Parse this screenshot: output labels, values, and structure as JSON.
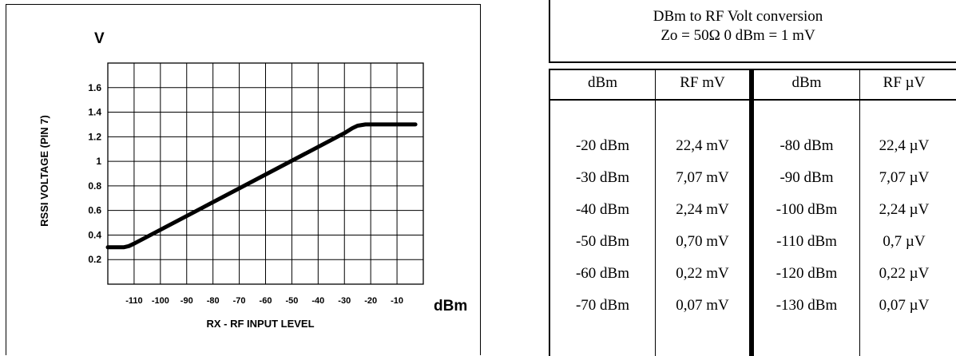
{
  "chart_data": {
    "type": "line",
    "title": "",
    "ylabel": "RSSI VOLTAGE (PIN 7)",
    "y_unit": "V",
    "xlabel": "RX - RF INPUT LEVEL",
    "x_unit": "dBm",
    "xlim": [
      -120,
      0
    ],
    "ylim": [
      0,
      1.8
    ],
    "grid": true,
    "x_tick_labels": [
      "-110",
      "-100",
      "-90",
      "-80",
      "-70",
      "-60",
      "-50",
      "-40",
      "-30",
      "-20",
      "-10"
    ],
    "y_tick_labels": [
      "0.2",
      "0.4",
      "0.6",
      "0.8",
      "1",
      "1.2",
      "1.4",
      "1.6"
    ],
    "series": [
      {
        "x": [
          -120,
          -114,
          -112,
          -110,
          -30,
          -27,
          -25,
          -22,
          -3
        ],
        "y": [
          0.3,
          0.3,
          0.31,
          0.33,
          1.23,
          1.27,
          1.29,
          1.3,
          1.3
        ],
        "color": "#000000"
      }
    ]
  },
  "conversion": {
    "title": "DBm to RF Volt conversion",
    "subtitle": "Zo = 50Ω   0 dBm = 1 mV",
    "headers": [
      "dBm",
      "RF mV",
      "dBm",
      "RF µV"
    ],
    "rows": [
      [
        "-20 dBm",
        "22,4 mV",
        "-80 dBm",
        "22,4 µV"
      ],
      [
        "-30 dBm",
        "7,07 mV",
        "-90 dBm",
        "7,07 µV"
      ],
      [
        "-40 dBm",
        "2,24 mV",
        "-100 dBm",
        "2,24 µV"
      ],
      [
        "-50 dBm",
        "0,70 mV",
        "-110 dBm",
        "0,7 µV"
      ],
      [
        "-60 dBm",
        "0,22 mV",
        "-120 dBm",
        "0,22 µV"
      ],
      [
        "-70 dBm",
        "0,07 mV",
        "-130 dBm",
        "0,07 µV"
      ]
    ]
  }
}
